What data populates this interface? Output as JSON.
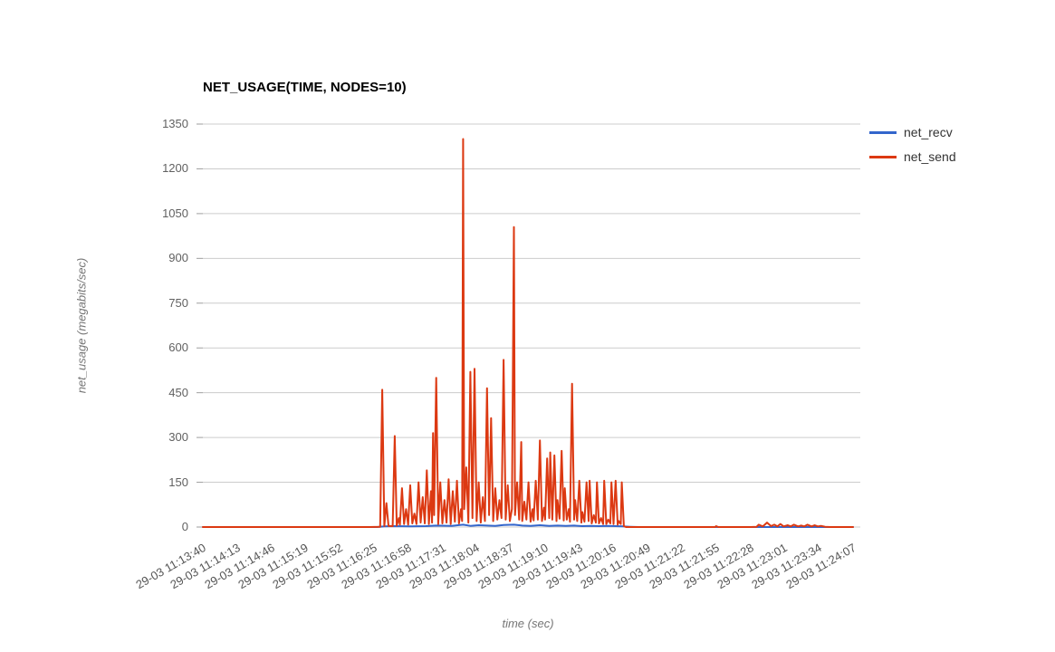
{
  "title": "NET_USAGE(TIME, NODES=10)",
  "colors": {
    "background": "#ffffff",
    "grid": "#cccccc",
    "tick": "#9e9e9e",
    "axis_label": "#616161",
    "axis_title": "#757575",
    "title_text": "#000000",
    "legend_text": "#333333",
    "net_recv": "#3366cc",
    "net_send": "#dc3912"
  },
  "chart_data": {
    "type": "line",
    "title": "NET_USAGE(TIME, NODES=10)",
    "xlabel": "time (sec)",
    "ylabel": "net_usage (megabits/sec)",
    "ylim": [
      0,
      1350
    ],
    "xlim_seconds": [
      0,
      627
    ],
    "x_tick_interval_seconds": 33,
    "grid": true,
    "legend_position": "right",
    "y_ticks": [
      0,
      150,
      300,
      450,
      600,
      750,
      900,
      1050,
      1200,
      1350
    ],
    "x_tick_labels": [
      "29-03 11:13:40",
      "29-03 11:14:13",
      "29-03 11:14:46",
      "29-03 11:15:19",
      "29-03 11:15:52",
      "29-03 11:16:25",
      "29-03 11:16:58",
      "29-03 11:17:31",
      "29-03 11:18:04",
      "29-03 11:18:37",
      "29-03 11:19:10",
      "29-03 11:19:43",
      "29-03 11:20:16",
      "29-03 11:20:49",
      "29-03 11:21:22",
      "29-03 11:21:55",
      "29-03 11:22:28",
      "29-03 11:23:01",
      "29-03 11:23:34",
      "29-03 11:24:07"
    ],
    "series": [
      {
        "name": "net_recv",
        "color": "#3366cc",
        "points": [
          [
            0,
            0
          ],
          [
            168,
            0
          ],
          [
            175,
            2
          ],
          [
            185,
            3
          ],
          [
            200,
            2
          ],
          [
            215,
            3
          ],
          [
            225,
            5
          ],
          [
            240,
            4
          ],
          [
            251,
            8
          ],
          [
            258,
            4
          ],
          [
            266,
            6
          ],
          [
            274,
            5
          ],
          [
            282,
            4
          ],
          [
            290,
            7
          ],
          [
            300,
            8
          ],
          [
            308,
            5
          ],
          [
            316,
            4
          ],
          [
            325,
            6
          ],
          [
            334,
            4
          ],
          [
            342,
            5
          ],
          [
            350,
            4
          ],
          [
            358,
            5
          ],
          [
            366,
            3
          ],
          [
            374,
            4
          ],
          [
            382,
            3
          ],
          [
            390,
            4
          ],
          [
            398,
            3
          ],
          [
            405,
            2
          ],
          [
            412,
            1
          ],
          [
            420,
            0
          ],
          [
            627,
            0
          ]
        ]
      },
      {
        "name": "net_send",
        "color": "#dc3912",
        "points": [
          [
            0,
            0
          ],
          [
            160,
            0
          ],
          [
            171,
            1
          ],
          [
            173,
            460
          ],
          [
            175,
            3
          ],
          [
            177,
            80
          ],
          [
            179,
            4
          ],
          [
            183,
            3
          ],
          [
            185,
            305
          ],
          [
            187,
            5
          ],
          [
            189,
            30
          ],
          [
            190,
            8
          ],
          [
            192,
            130
          ],
          [
            194,
            10
          ],
          [
            196,
            60
          ],
          [
            198,
            8
          ],
          [
            200,
            140
          ],
          [
            202,
            12
          ],
          [
            204,
            45
          ],
          [
            206,
            10
          ],
          [
            208,
            150
          ],
          [
            210,
            15
          ],
          [
            212,
            100
          ],
          [
            214,
            12
          ],
          [
            216,
            190
          ],
          [
            218,
            10
          ],
          [
            220,
            120
          ],
          [
            221,
            15
          ],
          [
            222,
            315
          ],
          [
            223,
            40
          ],
          [
            225,
            500
          ],
          [
            227,
            10
          ],
          [
            229,
            150
          ],
          [
            231,
            12
          ],
          [
            233,
            90
          ],
          [
            235,
            15
          ],
          [
            237,
            160
          ],
          [
            239,
            10
          ],
          [
            241,
            120
          ],
          [
            243,
            18
          ],
          [
            245,
            155
          ],
          [
            247,
            12
          ],
          [
            249,
            60
          ],
          [
            250,
            20
          ],
          [
            251,
            1300
          ],
          [
            252,
            60
          ],
          [
            254,
            200
          ],
          [
            256,
            15
          ],
          [
            258,
            520
          ],
          [
            260,
            30
          ],
          [
            262,
            530
          ],
          [
            264,
            20
          ],
          [
            266,
            150
          ],
          [
            268,
            15
          ],
          [
            270,
            100
          ],
          [
            272,
            20
          ],
          [
            274,
            465
          ],
          [
            276,
            40
          ],
          [
            278,
            365
          ],
          [
            280,
            20
          ],
          [
            282,
            130
          ],
          [
            284,
            25
          ],
          [
            286,
            90
          ],
          [
            288,
            30
          ],
          [
            290,
            560
          ],
          [
            292,
            25
          ],
          [
            294,
            140
          ],
          [
            296,
            20
          ],
          [
            298,
            60
          ],
          [
            300,
            1005
          ],
          [
            301,
            40
          ],
          [
            303,
            150
          ],
          [
            305,
            25
          ],
          [
            307,
            285
          ],
          [
            308,
            20
          ],
          [
            310,
            85
          ],
          [
            312,
            25
          ],
          [
            314,
            150
          ],
          [
            316,
            18
          ],
          [
            318,
            60
          ],
          [
            319,
            22
          ],
          [
            321,
            155
          ],
          [
            323,
            25
          ],
          [
            325,
            290
          ],
          [
            327,
            20
          ],
          [
            329,
            65
          ],
          [
            330,
            25
          ],
          [
            332,
            230
          ],
          [
            334,
            30
          ],
          [
            335,
            250
          ],
          [
            337,
            25
          ],
          [
            339,
            240
          ],
          [
            341,
            20
          ],
          [
            342,
            90
          ],
          [
            344,
            28
          ],
          [
            346,
            255
          ],
          [
            348,
            22
          ],
          [
            349,
            130
          ],
          [
            351,
            25
          ],
          [
            353,
            60
          ],
          [
            354,
            18
          ],
          [
            356,
            480
          ],
          [
            358,
            25
          ],
          [
            359,
            90
          ],
          [
            361,
            20
          ],
          [
            363,
            155
          ],
          [
            365,
            15
          ],
          [
            366,
            50
          ],
          [
            368,
            18
          ],
          [
            370,
            150
          ],
          [
            372,
            20
          ],
          [
            373,
            155
          ],
          [
            375,
            12
          ],
          [
            377,
            40
          ],
          [
            379,
            15
          ],
          [
            380,
            150
          ],
          [
            382,
            12
          ],
          [
            384,
            30
          ],
          [
            386,
            10
          ],
          [
            387,
            155
          ],
          [
            389,
            10
          ],
          [
            391,
            25
          ],
          [
            393,
            12
          ],
          [
            394,
            150
          ],
          [
            396,
            10
          ],
          [
            398,
            155
          ],
          [
            400,
            8
          ],
          [
            401,
            20
          ],
          [
            403,
            10
          ],
          [
            404,
            150
          ],
          [
            406,
            3
          ],
          [
            408,
            0
          ],
          [
            494,
            0
          ],
          [
            495,
            3
          ],
          [
            497,
            0
          ],
          [
            528,
            0
          ],
          [
            534,
            1
          ],
          [
            536,
            8
          ],
          [
            540,
            2
          ],
          [
            544,
            15
          ],
          [
            548,
            3
          ],
          [
            551,
            8
          ],
          [
            554,
            2
          ],
          [
            557,
            10
          ],
          [
            560,
            2
          ],
          [
            564,
            6
          ],
          [
            567,
            2
          ],
          [
            570,
            8
          ],
          [
            574,
            2
          ],
          [
            577,
            5
          ],
          [
            580,
            2
          ],
          [
            583,
            8
          ],
          [
            587,
            2
          ],
          [
            590,
            6
          ],
          [
            593,
            2
          ],
          [
            596,
            4
          ],
          [
            600,
            1
          ],
          [
            605,
            0
          ],
          [
            627,
            0
          ]
        ]
      }
    ]
  }
}
